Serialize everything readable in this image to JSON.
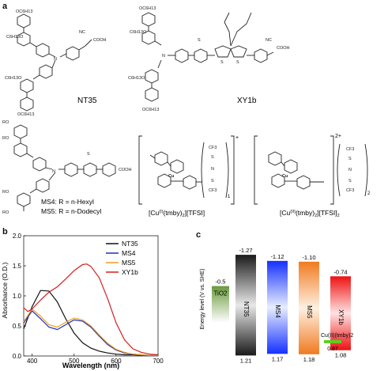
{
  "panels": {
    "a": "a",
    "b": "b",
    "c": "c"
  },
  "structures": {
    "nt35": "NT35",
    "xy1b": "XY1b",
    "ms_labels": [
      "MS4: R = n-Hexyl",
      "MS5: R = n-Dodecyl"
    ],
    "cu1_name": "[Cu(I)(tmby)2][TFSI]",
    "cu2_name": "[Cu(II)(tmby)2][TFSI]2",
    "cu1_charge": "+",
    "cu2_charge": "2+",
    "cu1_sub": "1",
    "cu2_sub": "2",
    "atoms": {
      "oc6": "OC6H13",
      "c6h13o": "C6H13O",
      "cooh": "COOH",
      "nc": "NC",
      "n": "N",
      "s": "S",
      "ro": "RO",
      "cf3": "CF3",
      "cu": "Cu"
    }
  },
  "chart_data": [
    {
      "type": "line",
      "xlabel": "Wavelength (nm)",
      "ylabel": "Absorbance (O.D.)",
      "xlim": [
        380,
        700
      ],
      "ylim": [
        0,
        2.0
      ],
      "xticks": [
        400,
        500,
        600,
        700
      ],
      "yticks": [
        0.0,
        0.5,
        1.0,
        1.5,
        2.0
      ],
      "legend_position": "top-right",
      "series": [
        {
          "name": "NT35",
          "color": "#111111",
          "x": [
            380,
            400,
            420,
            440,
            460,
            480,
            500,
            520,
            540,
            560,
            580,
            600,
            620,
            640,
            660,
            680,
            700
          ],
          "y": [
            0.45,
            0.82,
            1.09,
            1.08,
            0.9,
            0.62,
            0.38,
            0.22,
            0.13,
            0.08,
            0.05,
            0.03,
            0.02,
            0.02,
            0.01,
            0.01,
            0.01
          ]
        },
        {
          "name": "MS4",
          "color": "#1f2bbf",
          "x": [
            380,
            400,
            420,
            440,
            460,
            480,
            500,
            520,
            540,
            560,
            580,
            600,
            620,
            640,
            660,
            680,
            700
          ],
          "y": [
            0.55,
            0.75,
            0.62,
            0.48,
            0.44,
            0.52,
            0.6,
            0.58,
            0.48,
            0.33,
            0.19,
            0.1,
            0.05,
            0.03,
            0.02,
            0.01,
            0.01
          ]
        },
        {
          "name": "MS5",
          "color": "#e8a020",
          "x": [
            380,
            400,
            420,
            440,
            460,
            480,
            500,
            520,
            540,
            560,
            580,
            600,
            620,
            640,
            660,
            680,
            700
          ],
          "y": [
            0.57,
            0.78,
            0.66,
            0.52,
            0.48,
            0.56,
            0.63,
            0.6,
            0.5,
            0.35,
            0.21,
            0.11,
            0.06,
            0.03,
            0.02,
            0.01,
            0.01
          ]
        },
        {
          "name": "XY1b",
          "color": "#d41f1f",
          "x": [
            380,
            390,
            400,
            420,
            440,
            460,
            480,
            500,
            520,
            530,
            540,
            560,
            580,
            600,
            620,
            640,
            660,
            680,
            700
          ],
          "y": [
            0.8,
            0.74,
            0.78,
            0.93,
            1.06,
            1.15,
            1.28,
            1.42,
            1.52,
            1.53,
            1.49,
            1.3,
            0.95,
            0.55,
            0.27,
            0.12,
            0.06,
            0.03,
            0.02
          ]
        }
      ]
    },
    {
      "type": "bar",
      "ylabel": "Energy level (V vs. SHE)",
      "items": [
        {
          "name": "TiO2",
          "top": -0.5,
          "top_label": "-0.5",
          "color": "#7aa550"
        },
        {
          "name": "NT35",
          "top": -1.27,
          "bottom": 1.21,
          "top_label": "-1.27",
          "bottom_label": "1.21",
          "color": "#555555"
        },
        {
          "name": "MS4",
          "top": -1.12,
          "bottom": 1.17,
          "top_label": "-1.12",
          "bottom_label": "1.17",
          "color": "#2040ff"
        },
        {
          "name": "MS5",
          "top": -1.1,
          "bottom": 1.18,
          "top_label": "-1.10",
          "bottom_label": "1.18",
          "color": "#f08a3c"
        },
        {
          "name": "XY1b",
          "top": -0.74,
          "bottom": 1.08,
          "top_label": "-0.74",
          "bottom_label": "1.08",
          "color": "#ee2222"
        },
        {
          "name": "Cu(II)(tmby)2",
          "level": 0.87,
          "label": "0.87",
          "color": "#5ad020"
        }
      ]
    }
  ]
}
